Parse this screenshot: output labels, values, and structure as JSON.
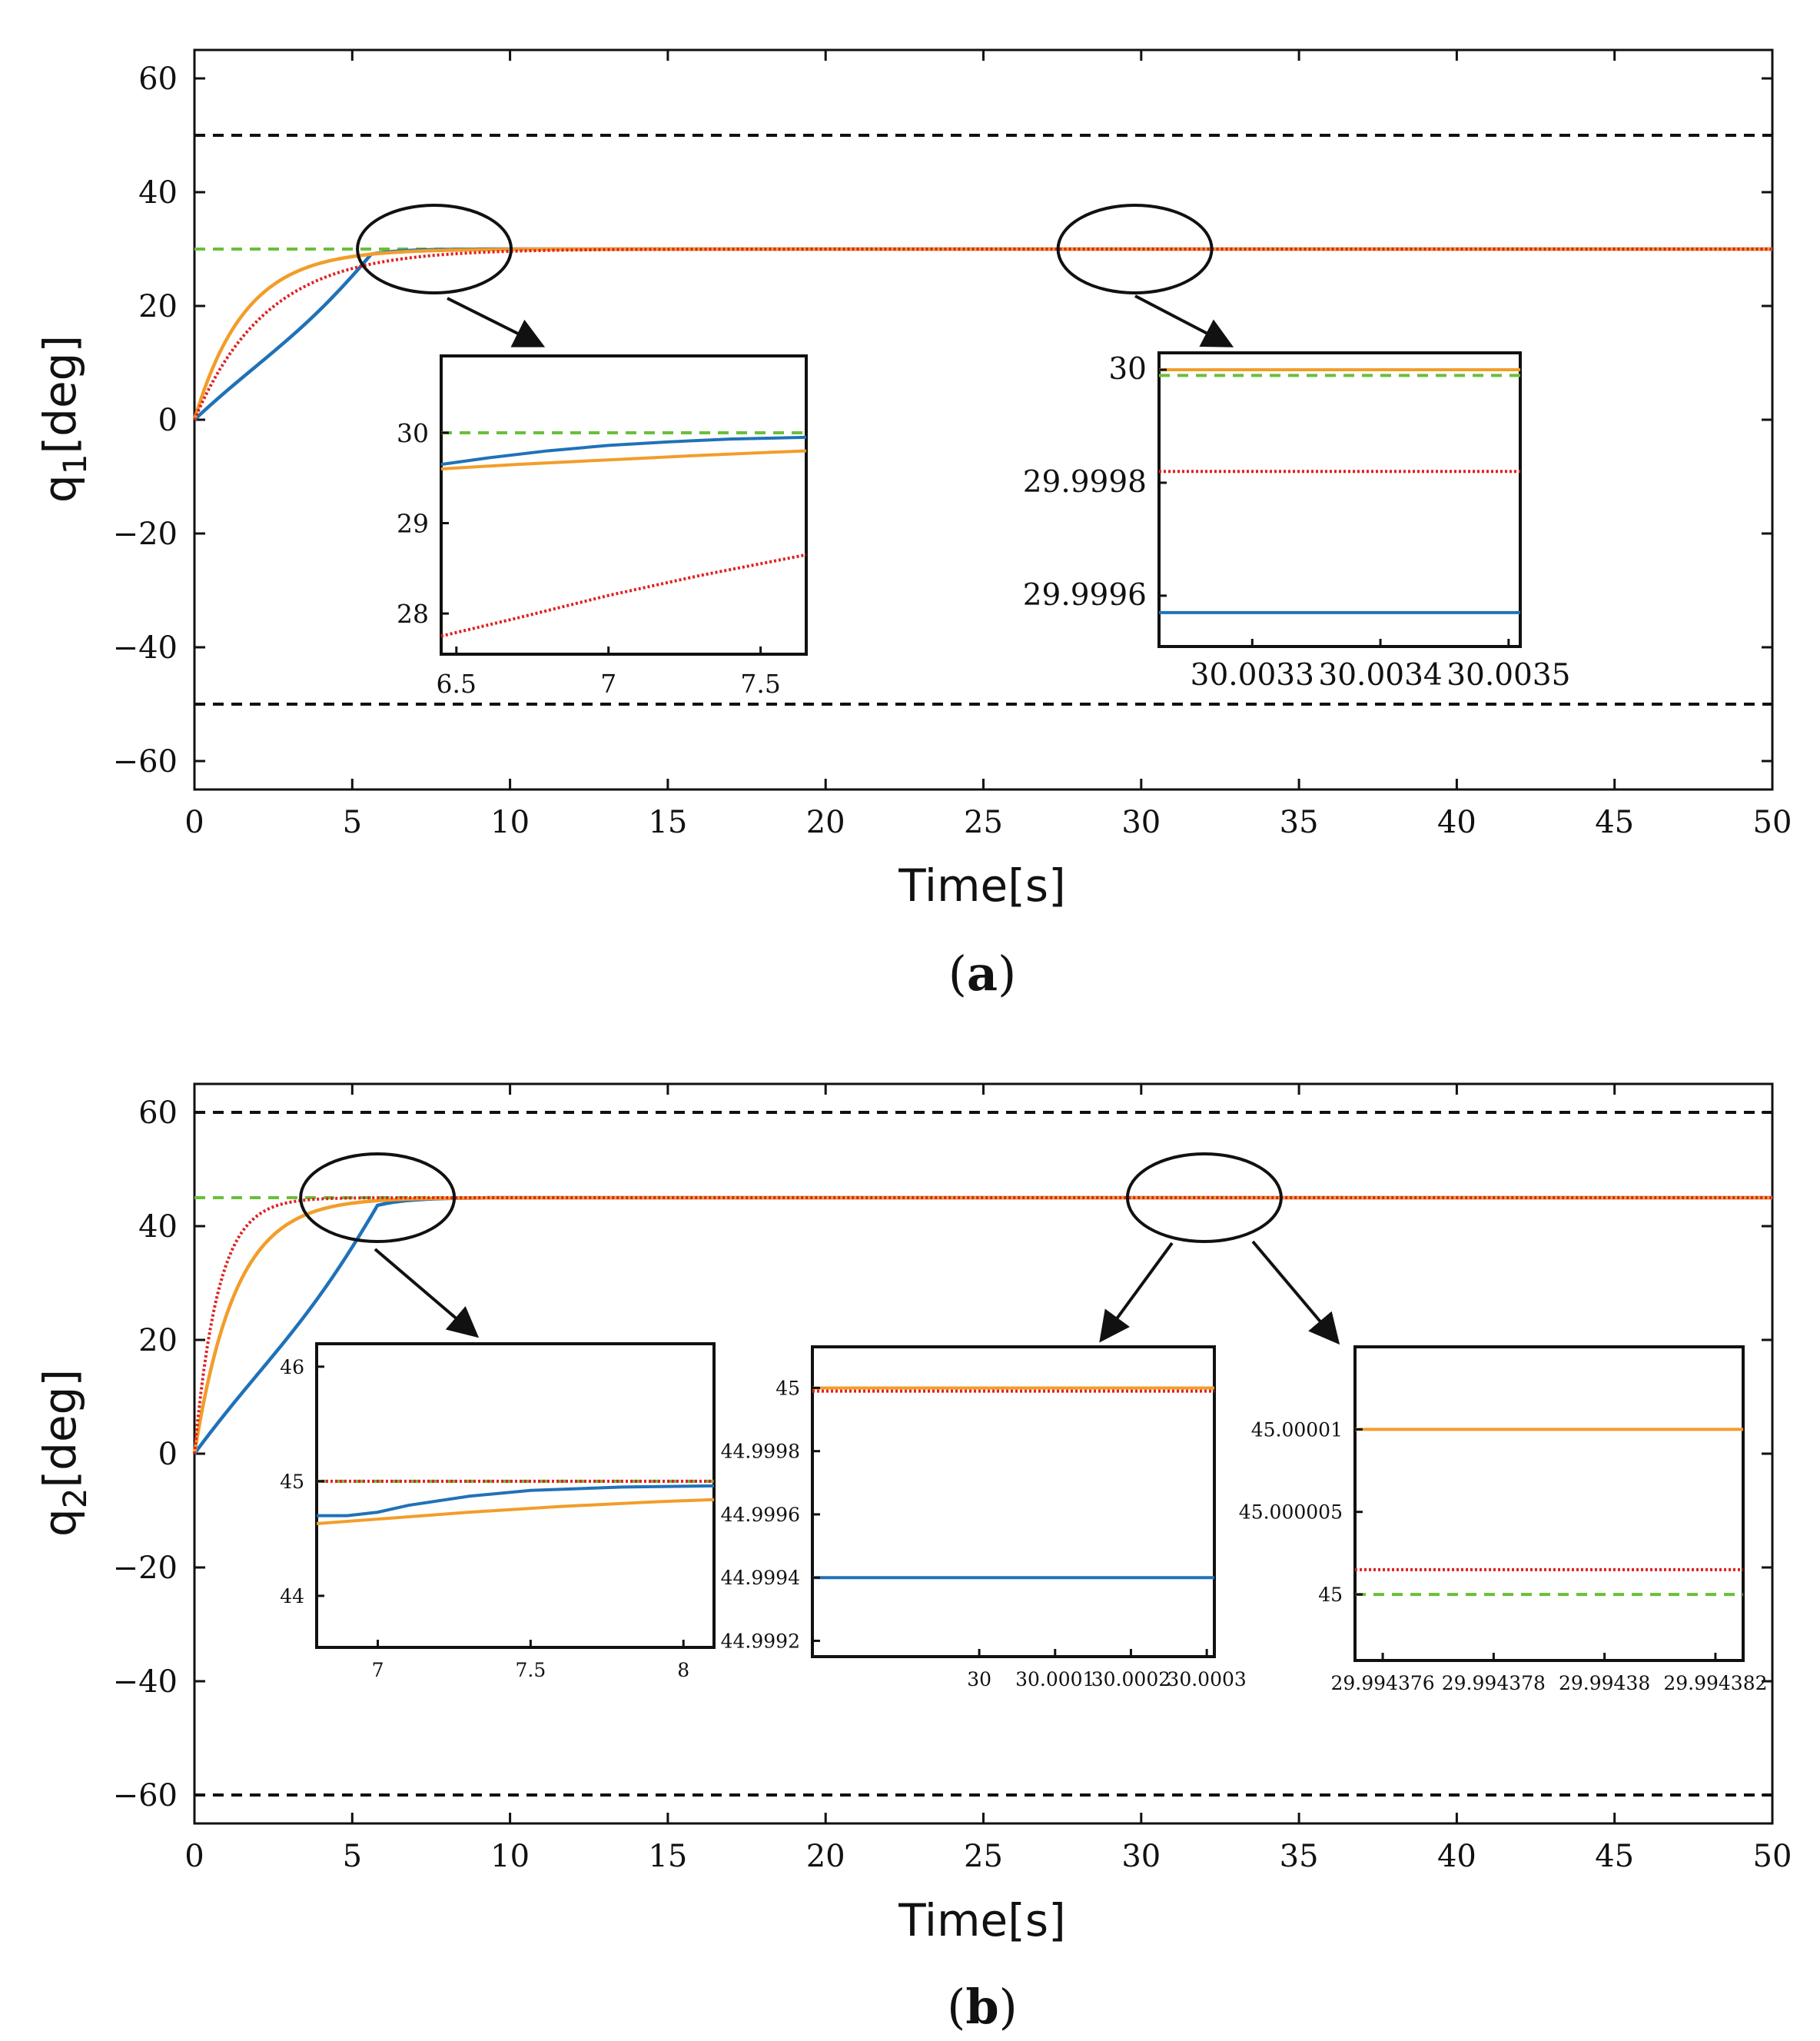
{
  "colors": {
    "blue": "#1f72b8",
    "orange": "#f29d2a",
    "red": "#e02020",
    "green": "#6abf3a",
    "black": "#111111"
  },
  "chart_data": [
    {
      "id": "panel_a",
      "type": "line",
      "caption_open": "(",
      "caption_letter": "a",
      "caption_close": ")",
      "xlabel": "Time[s]",
      "ylabel_main": "q",
      "ylabel_sub": "1",
      "ylabel_rest": "[deg]",
      "xlim": [
        0,
        50
      ],
      "ylim": [
        -65,
        65
      ],
      "xticks": [
        0,
        5,
        10,
        15,
        20,
        25,
        30,
        35,
        40,
        45,
        50
      ],
      "yticks": [
        60,
        40,
        20,
        0,
        -20,
        -40,
        -60
      ],
      "ytick_labels": [
        "60",
        "40",
        "20",
        "0",
        "−20",
        "−40",
        "−60"
      ],
      "bounds": [
        50,
        -50
      ],
      "reference": 30,
      "series": [
        {
          "name": "blue",
          "shape": "ramp",
          "final": 30,
          "params": {
            "tr": 5.6
          }
        },
        {
          "name": "orange",
          "shape": "exp",
          "final": 30,
          "params": {
            "tau": 1.6
          }
        },
        {
          "name": "red",
          "shape": "exp",
          "final": 30,
          "params": {
            "tau": 2.3
          }
        }
      ],
      "highlights": [
        {
          "cx": 7.6,
          "cy": 30
        },
        {
          "cx": 29.8,
          "cy": 30
        }
      ],
      "insets": [
        {
          "id": "a_inset_1",
          "xlim": [
            6.45,
            7.65
          ],
          "ylim": [
            27.55,
            30.85
          ],
          "xticks": [
            6.5,
            7,
            7.5
          ],
          "xtick_labels": [
            "6.5",
            "7",
            "7.5"
          ],
          "yticks": [
            30,
            29,
            28
          ],
          "ytick_labels": [
            "30",
            "29",
            "28"
          ],
          "lines": [
            {
              "color": "green",
              "dash": "dashed",
              "points": [
                [
                  6.45,
                  30.0
                ],
                [
                  7.65,
                  30.0
                ]
              ]
            },
            {
              "color": "blue",
              "dash": "solid",
              "points": [
                [
                  6.45,
                  29.65
                ],
                [
                  6.6,
                  29.72
                ],
                [
                  6.8,
                  29.8
                ],
                [
                  7.0,
                  29.86
                ],
                [
                  7.2,
                  29.9
                ],
                [
                  7.4,
                  29.93
                ],
                [
                  7.65,
                  29.95
                ]
              ]
            },
            {
              "color": "orange",
              "dash": "solid",
              "points": [
                [
                  6.45,
                  29.6
                ],
                [
                  6.7,
                  29.65
                ],
                [
                  7.0,
                  29.7
                ],
                [
                  7.3,
                  29.75
                ],
                [
                  7.65,
                  29.8
                ]
              ]
            },
            {
              "color": "red",
              "dash": "dotted",
              "points": [
                [
                  6.45,
                  27.75
                ],
                [
                  6.7,
                  27.95
                ],
                [
                  7.0,
                  28.2
                ],
                [
                  7.3,
                  28.42
                ],
                [
                  7.65,
                  28.65
                ]
              ]
            }
          ]
        },
        {
          "id": "a_inset_2",
          "xlim": [
            30.00325,
            30.00356
          ],
          "ylim": [
            29.99951,
            30.00003
          ],
          "xticks": [
            30.00333,
            30.00344,
            30.00355
          ],
          "xtick_labels": [
            "30.0033",
            "30.0034",
            "30.0035"
          ],
          "yticks": [
            30.0,
            29.9998,
            29.9996
          ],
          "ytick_labels": [
            "30",
            "29.9998",
            "29.9996"
          ],
          "lines": [
            {
              "color": "orange",
              "dash": "solid",
              "points": [
                [
                  30.00325,
                  30.0
                ],
                [
                  30.00356,
                  30.0
                ]
              ]
            },
            {
              "color": "green",
              "dash": "dashed",
              "points": [
                [
                  30.00325,
                  29.99999
                ],
                [
                  30.00356,
                  29.99999
                ]
              ]
            },
            {
              "color": "red",
              "dash": "dotted",
              "points": [
                [
                  30.00325,
                  29.99982
                ],
                [
                  30.00356,
                  29.99982
                ]
              ]
            },
            {
              "color": "blue",
              "dash": "solid",
              "points": [
                [
                  30.00325,
                  29.99957
                ],
                [
                  30.00356,
                  29.99957
                ]
              ]
            }
          ]
        }
      ]
    },
    {
      "id": "panel_b",
      "type": "line",
      "caption_open": "(",
      "caption_letter": "b",
      "caption_close": ")",
      "xlabel": "Time[s]",
      "ylabel_main": "q",
      "ylabel_sub": "2",
      "ylabel_rest": "[deg]",
      "xlim": [
        0,
        50
      ],
      "ylim": [
        -65,
        65
      ],
      "xticks": [
        0,
        5,
        10,
        15,
        20,
        25,
        30,
        35,
        40,
        45,
        50
      ],
      "yticks": [
        60,
        40,
        20,
        0,
        -20,
        -40,
        -60
      ],
      "ytick_labels": [
        "60",
        "40",
        "20",
        "0",
        "−20",
        "−40",
        "−60"
      ],
      "bounds": [
        60,
        -60
      ],
      "reference": 45,
      "series": [
        {
          "name": "blue",
          "shape": "ramp",
          "final": 45,
          "params": {
            "tr": 5.8
          }
        },
        {
          "name": "orange",
          "shape": "exp",
          "final": 45,
          "params": {
            "tau": 1.3
          }
        },
        {
          "name": "red",
          "shape": "exp",
          "final": 45,
          "params": {
            "tau": 0.75
          }
        }
      ],
      "highlights": [
        {
          "cx": 5.8,
          "cy": 45
        },
        {
          "cx": 32,
          "cy": 45
        }
      ],
      "insets": [
        {
          "id": "b_inset_1",
          "xlim": [
            6.8,
            8.1
          ],
          "ylim": [
            43.55,
            46.2
          ],
          "xticks": [
            7,
            7.5,
            8
          ],
          "xtick_labels": [
            "7",
            "7.5",
            "8"
          ],
          "yticks": [
            46,
            45,
            44
          ],
          "ytick_labels": [
            "46",
            "45",
            "44"
          ],
          "lines": [
            {
              "color": "green",
              "dash": "dashed",
              "points": [
                [
                  6.8,
                  45.0
                ],
                [
                  8.1,
                  45.0
                ]
              ]
            },
            {
              "color": "red",
              "dash": "dotted",
              "points": [
                [
                  6.8,
                  45.0
                ],
                [
                  8.1,
                  45.0
                ]
              ]
            },
            {
              "color": "blue",
              "dash": "solid",
              "points": [
                [
                  6.8,
                  44.7
                ],
                [
                  6.9,
                  44.7
                ],
                [
                  7.0,
                  44.73
                ],
                [
                  7.1,
                  44.79
                ],
                [
                  7.3,
                  44.87
                ],
                [
                  7.5,
                  44.92
                ],
                [
                  7.8,
                  44.95
                ],
                [
                  8.1,
                  44.96
                ]
              ]
            },
            {
              "color": "orange",
              "dash": "solid",
              "points": [
                [
                  6.8,
                  44.63
                ],
                [
                  7.0,
                  44.67
                ],
                [
                  7.3,
                  44.73
                ],
                [
                  7.6,
                  44.78
                ],
                [
                  7.9,
                  44.82
                ],
                [
                  8.1,
                  44.84
                ]
              ]
            }
          ]
        },
        {
          "id": "b_inset_2",
          "xlim": [
            29.99978,
            30.00031
          ],
          "ylim": [
            44.99915,
            45.00013
          ],
          "xticks": [
            30.0,
            30.0001,
            30.0002,
            30.0003
          ],
          "xtick_labels": [
            "30",
            "30.0001",
            "30.0002",
            "30.0003"
          ],
          "yticks": [
            45.0,
            44.9998,
            44.9996,
            44.9994,
            44.9992
          ],
          "ytick_labels": [
            "45",
            "44.9998",
            "44.9996",
            "44.9994",
            "44.9992"
          ],
          "lines": [
            {
              "color": "orange",
              "dash": "solid",
              "points": [
                [
                  29.99978,
                  45.0
                ],
                [
                  30.00031,
                  45.0
                ]
              ]
            },
            {
              "color": "red",
              "dash": "dotted",
              "points": [
                [
                  29.99978,
                  44.99999
                ],
                [
                  30.00031,
                  44.99999
                ]
              ]
            },
            {
              "color": "blue",
              "dash": "solid",
              "points": [
                [
                  29.99978,
                  44.9994
                ],
                [
                  30.00031,
                  44.9994
                ]
              ]
            }
          ]
        },
        {
          "id": "b_inset_3",
          "xlim": [
            29.9943755,
            29.9943825
          ],
          "ylim": [
            44.999996,
            45.000015
          ],
          "xticks": [
            29.994376,
            29.994378,
            29.99438,
            29.994382
          ],
          "xtick_labels": [
            "29.994376",
            "29.994378",
            "29.99438",
            "29.994382"
          ],
          "yticks": [
            45.00001,
            45.000005,
            45.0
          ],
          "ytick_labels": [
            "45.00001",
            "45.000005",
            "45"
          ],
          "lines": [
            {
              "color": "orange",
              "dash": "solid",
              "points": [
                [
                  29.9943755,
                  45.00001
                ],
                [
                  29.9943825,
                  45.00001
                ]
              ]
            },
            {
              "color": "red",
              "dash": "dotted",
              "points": [
                [
                  29.9943755,
                  45.0000015
                ],
                [
                  29.9943825,
                  45.0000015
                ]
              ]
            },
            {
              "color": "green",
              "dash": "dashed",
              "points": [
                [
                  29.9943755,
                  45.0
                ],
                [
                  29.9943825,
                  45.0
                ]
              ]
            }
          ]
        }
      ]
    }
  ]
}
